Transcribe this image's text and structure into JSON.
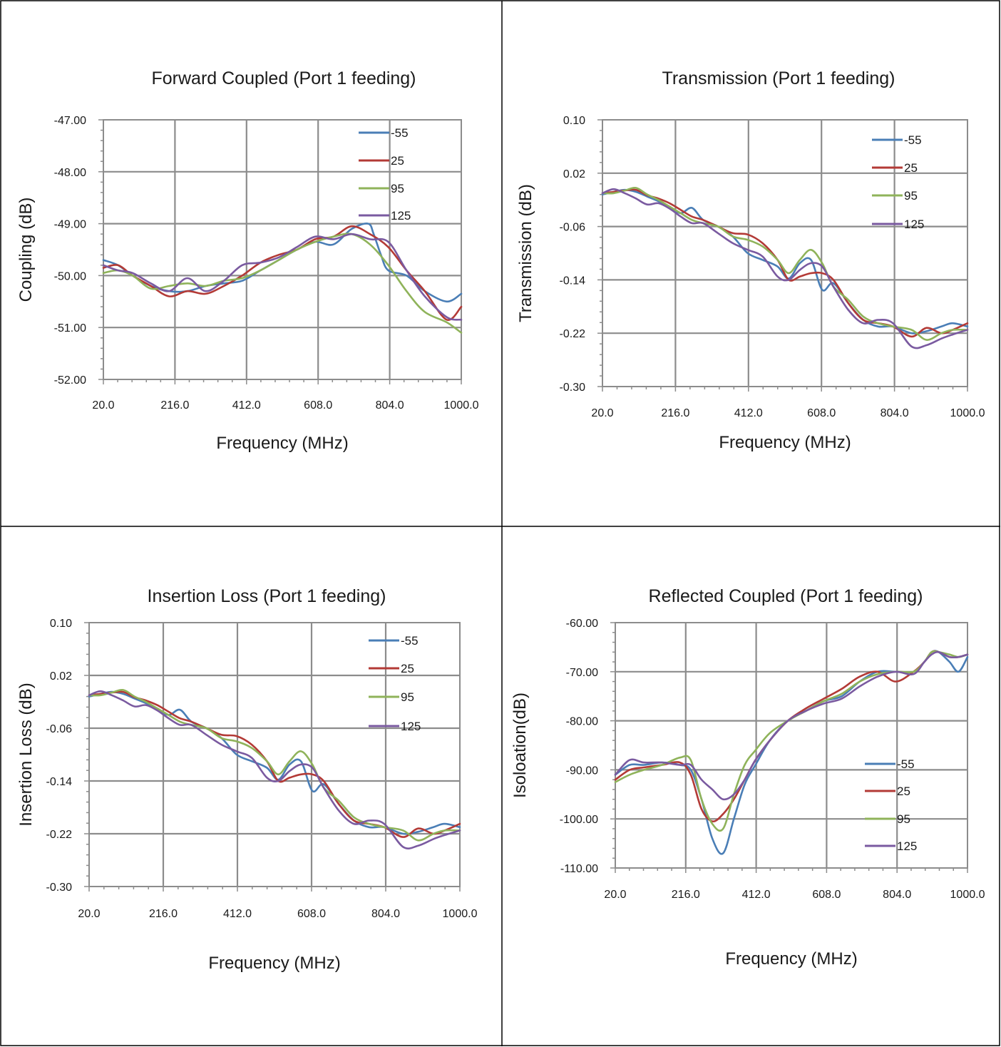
{
  "colors": {
    "s55": "#4a7eb6",
    "s25": "#b33a36",
    "s95": "#8fb35a",
    "s125": "#7a5aa0"
  },
  "chart_data": [
    {
      "type": "line",
      "title": "Forward Coupled (Port 1 feeding)",
      "xlabel": "Frequency (MHz)",
      "ylabel": "Coupling (dB)",
      "xlim": [
        20,
        1000
      ],
      "ylim": [
        -52,
        -47
      ],
      "x_ticks": [
        "20.0",
        "216.0",
        "412.0",
        "608.0",
        "804.0",
        "1000.0"
      ],
      "y_ticks": [
        "-47.00",
        "-48.00",
        "-49.00",
        "-50.00",
        "-51.00",
        "-52.00"
      ],
      "grid": true,
      "legend": "top-right",
      "series": [
        {
          "name": "-55",
          "color": "#4a7eb6",
          "x": [
            20,
            60,
            100,
            150,
            200,
            250,
            300,
            350,
            400,
            450,
            500,
            550,
            600,
            650,
            700,
            745,
            760,
            780,
            800,
            850,
            900,
            960,
            1000
          ],
          "y": [
            -49.7,
            -49.8,
            -50.0,
            -50.2,
            -50.3,
            -50.3,
            -50.2,
            -50.15,
            -50.1,
            -49.9,
            -49.7,
            -49.5,
            -49.35,
            -49.4,
            -49.1,
            -49.0,
            -49.2,
            -49.6,
            -49.9,
            -50.0,
            -50.3,
            -50.5,
            -50.35
          ]
        },
        {
          "name": "25",
          "color": "#b33a36",
          "x": [
            20,
            60,
            100,
            150,
            200,
            250,
            300,
            350,
            400,
            450,
            500,
            550,
            600,
            650,
            700,
            750,
            800,
            850,
            900,
            960,
            1000
          ],
          "y": [
            -49.85,
            -49.8,
            -50.0,
            -50.2,
            -50.4,
            -50.3,
            -50.35,
            -50.2,
            -50.0,
            -49.75,
            -49.6,
            -49.5,
            -49.3,
            -49.25,
            -49.05,
            -49.2,
            -49.45,
            -49.9,
            -50.3,
            -50.85,
            -50.6
          ]
        },
        {
          "name": "95",
          "color": "#8fb35a",
          "x": [
            20,
            60,
            100,
            150,
            200,
            250,
            300,
            350,
            400,
            450,
            500,
            550,
            600,
            650,
            700,
            750,
            800,
            850,
            900,
            960,
            1000
          ],
          "y": [
            -49.95,
            -49.9,
            -50.0,
            -50.25,
            -50.2,
            -50.15,
            -50.2,
            -50.1,
            -50.05,
            -49.9,
            -49.7,
            -49.5,
            -49.35,
            -49.25,
            -49.2,
            -49.4,
            -49.8,
            -50.3,
            -50.7,
            -50.9,
            -51.1
          ]
        },
        {
          "name": "125",
          "color": "#7a5aa0",
          "x": [
            20,
            60,
            100,
            150,
            200,
            250,
            300,
            350,
            400,
            450,
            500,
            550,
            600,
            650,
            700,
            750,
            800,
            850,
            900,
            960,
            1000
          ],
          "y": [
            -49.8,
            -49.9,
            -49.95,
            -50.15,
            -50.3,
            -50.05,
            -50.3,
            -50.1,
            -49.8,
            -49.75,
            -49.65,
            -49.45,
            -49.25,
            -49.3,
            -49.2,
            -49.3,
            -49.35,
            -49.9,
            -50.4,
            -50.8,
            -50.85
          ]
        }
      ]
    },
    {
      "type": "line",
      "title": "Transmission (Port 1 feeding)",
      "xlabel": "Frequency (MHz)",
      "ylabel": "Transmission (dB)",
      "xlim": [
        20,
        1000
      ],
      "ylim": [
        -0.3,
        0.1
      ],
      "x_ticks": [
        "20.0",
        "216.0",
        "412.0",
        "608.0",
        "804.0",
        "1000.0"
      ],
      "y_ticks": [
        "0.10",
        "0.02",
        "-0.06",
        "-0.14",
        "-0.22",
        "-0.30"
      ],
      "grid": true,
      "legend": "top-right",
      "series": [
        {
          "name": "-55",
          "color": "#4a7eb6",
          "x": [
            20,
            50,
            80,
            110,
            140,
            170,
            200,
            230,
            260,
            290,
            330,
            370,
            410,
            450,
            490,
            520,
            550,
            580,
            610,
            640,
            680,
            720,
            760,
            800,
            850,
            890,
            930,
            960,
            1000
          ],
          "y": [
            -0.012,
            -0.008,
            -0.005,
            -0.008,
            -0.015,
            -0.022,
            -0.03,
            -0.04,
            -0.032,
            -0.05,
            -0.06,
            -0.075,
            -0.1,
            -0.11,
            -0.12,
            -0.138,
            -0.115,
            -0.11,
            -0.155,
            -0.145,
            -0.175,
            -0.2,
            -0.21,
            -0.21,
            -0.22,
            -0.217,
            -0.21,
            -0.205,
            -0.21
          ]
        },
        {
          "name": "25",
          "color": "#b33a36",
          "x": [
            20,
            50,
            80,
            110,
            140,
            170,
            200,
            230,
            260,
            290,
            330,
            370,
            410,
            450,
            490,
            520,
            550,
            580,
            610,
            640,
            680,
            720,
            760,
            800,
            850,
            890,
            930,
            960,
            1000
          ],
          "y": [
            -0.01,
            -0.008,
            -0.006,
            -0.005,
            -0.013,
            -0.018,
            -0.025,
            -0.035,
            -0.045,
            -0.05,
            -0.06,
            -0.07,
            -0.072,
            -0.085,
            -0.11,
            -0.14,
            -0.135,
            -0.13,
            -0.13,
            -0.14,
            -0.175,
            -0.2,
            -0.205,
            -0.21,
            -0.225,
            -0.212,
            -0.22,
            -0.215,
            -0.205
          ]
        },
        {
          "name": "95",
          "color": "#8fb35a",
          "x": [
            20,
            50,
            80,
            110,
            140,
            170,
            200,
            230,
            260,
            290,
            330,
            370,
            410,
            450,
            490,
            520,
            550,
            580,
            610,
            640,
            680,
            720,
            760,
            800,
            850,
            890,
            930,
            960,
            1000
          ],
          "y": [
            -0.01,
            -0.01,
            -0.006,
            -0.002,
            -0.012,
            -0.02,
            -0.03,
            -0.04,
            -0.05,
            -0.055,
            -0.06,
            -0.075,
            -0.08,
            -0.09,
            -0.11,
            -0.13,
            -0.11,
            -0.095,
            -0.115,
            -0.15,
            -0.17,
            -0.195,
            -0.205,
            -0.21,
            -0.215,
            -0.23,
            -0.22,
            -0.215,
            -0.215
          ]
        },
        {
          "name": "125",
          "color": "#7a5aa0",
          "x": [
            20,
            50,
            80,
            110,
            140,
            170,
            200,
            230,
            260,
            290,
            330,
            370,
            410,
            450,
            490,
            520,
            550,
            580,
            610,
            640,
            680,
            720,
            760,
            800,
            850,
            890,
            930,
            960,
            1000
          ],
          "y": [
            -0.01,
            -0.004,
            -0.01,
            -0.018,
            -0.027,
            -0.025,
            -0.033,
            -0.045,
            -0.055,
            -0.055,
            -0.07,
            -0.085,
            -0.095,
            -0.105,
            -0.135,
            -0.14,
            -0.125,
            -0.115,
            -0.12,
            -0.15,
            -0.185,
            -0.205,
            -0.2,
            -0.205,
            -0.24,
            -0.238,
            -0.228,
            -0.222,
            -0.215
          ]
        }
      ]
    },
    {
      "type": "line",
      "title": "Insertion Loss (Port 1 feeding)",
      "xlabel": "Frequency (MHz)",
      "ylabel": "Insertion Loss (dB)",
      "xlim": [
        20,
        1000
      ],
      "ylim": [
        -0.3,
        0.1
      ],
      "x_ticks": [
        "20.0",
        "216.0",
        "412.0",
        "608.0",
        "804.0",
        "1000.0"
      ],
      "y_ticks": [
        "0.10",
        "0.02",
        "-0.06",
        "-0.14",
        "-0.22",
        "-0.30"
      ],
      "grid": true,
      "legend": "top-right",
      "series": [
        {
          "name": "-55",
          "color": "#4a7eb6",
          "x": [
            20,
            50,
            80,
            110,
            140,
            170,
            200,
            230,
            260,
            290,
            330,
            370,
            410,
            450,
            490,
            520,
            550,
            580,
            610,
            640,
            680,
            720,
            760,
            800,
            850,
            890,
            930,
            960,
            1000
          ],
          "y": [
            -0.012,
            -0.008,
            -0.005,
            -0.008,
            -0.015,
            -0.022,
            -0.03,
            -0.04,
            -0.032,
            -0.05,
            -0.06,
            -0.075,
            -0.1,
            -0.11,
            -0.12,
            -0.138,
            -0.115,
            -0.11,
            -0.155,
            -0.145,
            -0.175,
            -0.2,
            -0.21,
            -0.21,
            -0.22,
            -0.217,
            -0.21,
            -0.205,
            -0.21
          ]
        },
        {
          "name": "25",
          "color": "#b33a36",
          "x": [
            20,
            50,
            80,
            110,
            140,
            170,
            200,
            230,
            260,
            290,
            330,
            370,
            410,
            450,
            490,
            520,
            550,
            580,
            610,
            640,
            680,
            720,
            760,
            800,
            850,
            890,
            930,
            960,
            1000
          ],
          "y": [
            -0.01,
            -0.008,
            -0.006,
            -0.005,
            -0.013,
            -0.018,
            -0.025,
            -0.035,
            -0.045,
            -0.05,
            -0.06,
            -0.07,
            -0.072,
            -0.085,
            -0.11,
            -0.14,
            -0.135,
            -0.13,
            -0.13,
            -0.14,
            -0.175,
            -0.2,
            -0.205,
            -0.21,
            -0.225,
            -0.212,
            -0.22,
            -0.215,
            -0.205
          ]
        },
        {
          "name": "95",
          "color": "#8fb35a",
          "x": [
            20,
            50,
            80,
            110,
            140,
            170,
            200,
            230,
            260,
            290,
            330,
            370,
            410,
            450,
            490,
            520,
            550,
            580,
            610,
            640,
            680,
            720,
            760,
            800,
            850,
            890,
            930,
            960,
            1000
          ],
          "y": [
            -0.01,
            -0.01,
            -0.006,
            -0.002,
            -0.012,
            -0.02,
            -0.03,
            -0.04,
            -0.05,
            -0.055,
            -0.06,
            -0.075,
            -0.08,
            -0.09,
            -0.11,
            -0.13,
            -0.11,
            -0.095,
            -0.115,
            -0.15,
            -0.17,
            -0.195,
            -0.205,
            -0.21,
            -0.215,
            -0.23,
            -0.22,
            -0.215,
            -0.215
          ]
        },
        {
          "name": "125",
          "color": "#7a5aa0",
          "x": [
            20,
            50,
            80,
            110,
            140,
            170,
            200,
            230,
            260,
            290,
            330,
            370,
            410,
            450,
            490,
            520,
            550,
            580,
            610,
            640,
            680,
            720,
            760,
            800,
            850,
            890,
            930,
            960,
            1000
          ],
          "y": [
            -0.01,
            -0.004,
            -0.01,
            -0.018,
            -0.027,
            -0.025,
            -0.033,
            -0.045,
            -0.055,
            -0.055,
            -0.07,
            -0.085,
            -0.095,
            -0.105,
            -0.135,
            -0.14,
            -0.125,
            -0.115,
            -0.12,
            -0.15,
            -0.185,
            -0.205,
            -0.2,
            -0.205,
            -0.24,
            -0.238,
            -0.228,
            -0.222,
            -0.215
          ]
        }
      ]
    },
    {
      "type": "line",
      "title": "Reflected Coupled (Port 1 feeding)",
      "xlabel": "Frequency (MHz)",
      "ylabel": "Isoloation(dB)",
      "xlim": [
        20,
        1000
      ],
      "ylim": [
        -110,
        -60
      ],
      "x_ticks": [
        "20.0",
        "216.0",
        "412.0",
        "608.0",
        "804.0",
        "1000.0"
      ],
      "y_ticks": [
        "-60.00",
        "-70.00",
        "-80.00",
        "-90.00",
        "-100.00",
        "-110.00"
      ],
      "grid": true,
      "legend": "right",
      "series": [
        {
          "name": "-55",
          "color": "#4a7eb6",
          "x": [
            20,
            60,
            100,
            150,
            200,
            230,
            260,
            290,
            320,
            350,
            380,
            410,
            450,
            500,
            550,
            600,
            650,
            700,
            750,
            800,
            850,
            880,
            900,
            920,
            950,
            975,
            1000
          ],
          "y": [
            -91,
            -89,
            -89,
            -88.5,
            -89,
            -90,
            -96,
            -104,
            -107,
            -100,
            -93,
            -89,
            -84,
            -80,
            -78,
            -76,
            -75,
            -72,
            -70,
            -70,
            -70,
            -68,
            -66,
            -66,
            -68,
            -70,
            -67
          ]
        },
        {
          "name": "25",
          "color": "#b33a36",
          "x": [
            20,
            60,
            100,
            150,
            200,
            230,
            260,
            290,
            320,
            350,
            380,
            410,
            450,
            500,
            550,
            600,
            650,
            700,
            750,
            800,
            850,
            880,
            900,
            920,
            950,
            975,
            1000
          ],
          "y": [
            -92,
            -90,
            -89.5,
            -89,
            -88.5,
            -91,
            -98,
            -100.5,
            -99,
            -96,
            -92,
            -88,
            -84,
            -80,
            -77.5,
            -75.5,
            -73.5,
            -71,
            -70,
            -72,
            -70,
            -68,
            -66,
            -66,
            -67,
            -67,
            -66.5
          ]
        },
        {
          "name": "95",
          "color": "#8fb35a",
          "x": [
            20,
            60,
            100,
            150,
            200,
            230,
            260,
            290,
            320,
            350,
            380,
            410,
            450,
            500,
            550,
            600,
            650,
            700,
            750,
            800,
            850,
            880,
            900,
            920,
            950,
            975,
            1000
          ],
          "y": [
            -92.5,
            -91,
            -90,
            -89,
            -87.5,
            -88,
            -96,
            -101,
            -102,
            -95,
            -89,
            -86,
            -82.5,
            -80,
            -78,
            -76,
            -74.5,
            -72,
            -70.5,
            -70,
            -70,
            -68,
            -66,
            -66,
            -66.5,
            -67,
            -66.5
          ]
        },
        {
          "name": "125",
          "color": "#7a5aa0",
          "x": [
            20,
            60,
            100,
            150,
            200,
            230,
            260,
            290,
            320,
            350,
            380,
            410,
            450,
            500,
            550,
            600,
            650,
            700,
            750,
            800,
            850,
            880,
            900,
            920,
            950,
            975,
            1000
          ],
          "y": [
            -91,
            -88,
            -88.5,
            -88.5,
            -89,
            -89,
            -92,
            -94,
            -96,
            -95,
            -92,
            -88,
            -84,
            -80,
            -78,
            -76.5,
            -75.5,
            -73,
            -71,
            -70,
            -70.5,
            -68,
            -66.5,
            -66,
            -67,
            -67,
            -66.5
          ]
        }
      ]
    }
  ]
}
